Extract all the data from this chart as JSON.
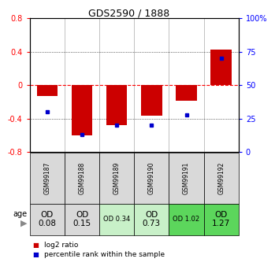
{
  "title": "GDS2590 / 1888",
  "samples": [
    "GSM99187",
    "GSM99188",
    "GSM99189",
    "GSM99190",
    "GSM99191",
    "GSM99192"
  ],
  "log2_ratios": [
    -0.13,
    -0.6,
    -0.48,
    -0.36,
    -0.18,
    0.43
  ],
  "percentile_ranks": [
    30,
    13,
    20,
    20,
    28,
    70
  ],
  "od_labels": [
    "OD\n0.08",
    "OD\n0.15",
    "OD 0.34",
    "OD\n0.73",
    "OD 1.02",
    "OD\n1.27"
  ],
  "od_fontsize": [
    7.5,
    7.5,
    6.0,
    7.5,
    6.0,
    7.5
  ],
  "cell_colors": [
    "#d9d9d9",
    "#d9d9d9",
    "#c8f0c8",
    "#c8f0c8",
    "#5cd65c",
    "#5cd65c"
  ],
  "bar_color": "#cc0000",
  "dot_color": "#0000cc",
  "ylim": [
    -0.8,
    0.8
  ],
  "yticks_left": [
    -0.8,
    -0.4,
    0.0,
    0.4,
    0.8
  ],
  "yticks_right": [
    0,
    25,
    50,
    75,
    100
  ],
  "background": "#ffffff",
  "age_label": "age",
  "legend_log2": "log2 ratio",
  "legend_pct": "percentile rank within the sample",
  "title_fontsize": 9,
  "tick_fontsize": 7,
  "sample_fontsize": 5.5,
  "legend_fontsize": 6.5
}
